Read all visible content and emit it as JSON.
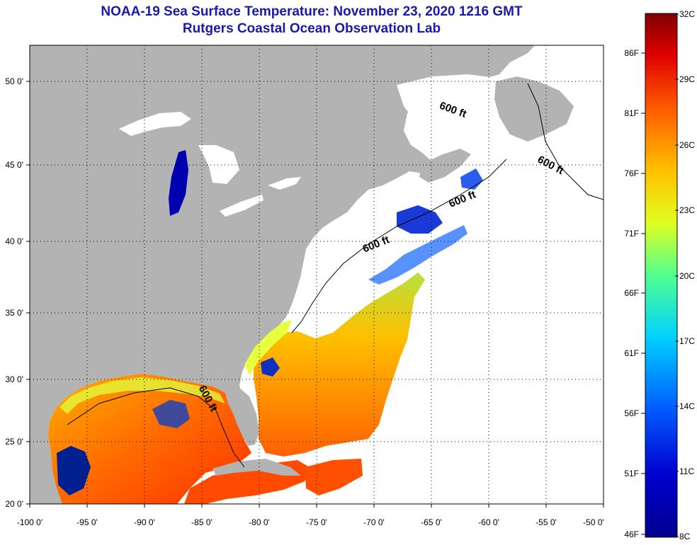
{
  "header": {
    "title": "NOAA-19 Sea Surface Temperature:  November 23, 2020 1216 GMT",
    "subtitle": "Rutgers Coastal Ocean Observation Lab"
  },
  "map": {
    "lon_range": [
      -100,
      -50
    ],
    "lat_range": [
      20,
      52.5
    ],
    "lon_ticks": [
      "-100 0'",
      "-95 0'",
      "-90 0'",
      "-85 0'",
      "-80 0'",
      "-75 0'",
      "-70 0'",
      "-65 0'",
      "-60 0'",
      "-55 0'",
      "-50 0'"
    ],
    "lat_ticks": [
      "20 0'",
      "25 0'",
      "30 0'",
      "35 0'",
      "40 0'",
      "45 0'",
      "50 0'"
    ],
    "grid": "dotted",
    "contour_label": "600 ft",
    "land_color": "#b3b3b3",
    "no_data_color": "#ffffff"
  },
  "colorbar": {
    "celsius": [
      "32C",
      "29C",
      "26C",
      "23C",
      "20C",
      "17C",
      "14C",
      "11C",
      "8C"
    ],
    "fahrenheit": [
      "86F",
      "81F",
      "76F",
      "71F",
      "66F",
      "61F",
      "56F",
      "51F",
      "46F"
    ],
    "colors": [
      "#800000",
      "#e00000",
      "#ff5a00",
      "#ffc000",
      "#e0ff20",
      "#50ff90",
      "#00d0ff",
      "#0060ff",
      "#0000d0",
      "#00008f"
    ]
  }
}
